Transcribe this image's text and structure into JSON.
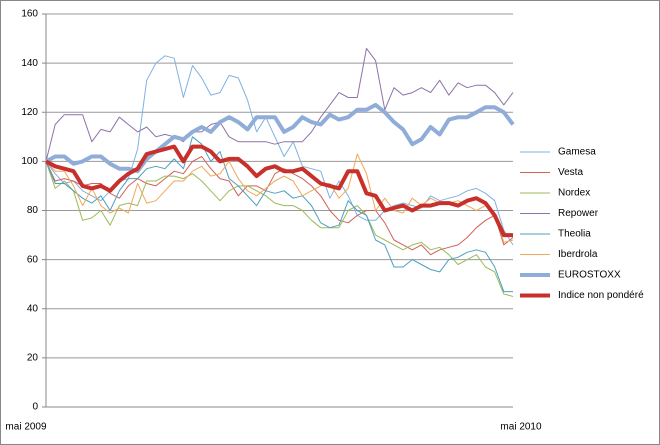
{
  "chart_data": {
    "type": "line",
    "categories": [
      "mai 2009",
      null,
      null,
      null,
      null,
      null,
      null,
      null,
      null,
      null,
      null,
      null,
      null,
      null,
      null,
      null,
      null,
      null,
      null,
      null,
      null,
      null,
      null,
      null,
      null,
      null,
      null,
      null,
      null,
      null,
      null,
      null,
      null,
      null,
      null,
      null,
      null,
      null,
      null,
      null,
      null,
      null,
      null,
      null,
      null,
      null,
      null,
      null,
      null,
      null,
      null,
      "mai 2010"
    ],
    "ylim": [
      0,
      160
    ],
    "yticks": [
      0,
      20,
      40,
      60,
      80,
      100,
      120,
      140,
      160
    ],
    "grid": true,
    "legend": "right",
    "series": [
      {
        "name": "Gamesa",
        "color": "#7fb2e0",
        "width": 1,
        "values": [
          100,
          95,
          91,
          92,
          88,
          86,
          84,
          88,
          92,
          93,
          105,
          133,
          140,
          143,
          142,
          126,
          139,
          134,
          127,
          128,
          135,
          134,
          125,
          112,
          118,
          110,
          102,
          108,
          98,
          97,
          96,
          85,
          92,
          86,
          78,
          76,
          76,
          80,
          82,
          83,
          82,
          81,
          86,
          84,
          85,
          86,
          88,
          89,
          87,
          84,
          72,
          66
        ]
      },
      {
        "name": "Vesta",
        "color": "#d0605a",
        "width": 1,
        "values": [
          100,
          92,
          93,
          92,
          90,
          91,
          91,
          87,
          85,
          90,
          93,
          91,
          90,
          93,
          96,
          95,
          100,
          102,
          97,
          93,
          92,
          86,
          90,
          90,
          88,
          95,
          97,
          95,
          93,
          90,
          86,
          80,
          76,
          75,
          78,
          80,
          80,
          75,
          68,
          66,
          64,
          66,
          62,
          64,
          65,
          66,
          69,
          73,
          76,
          78,
          66,
          69
        ]
      },
      {
        "name": "Nordex",
        "color": "#9bbb59",
        "width": 1,
        "values": [
          100,
          89,
          92,
          88,
          76,
          77,
          80,
          74,
          82,
          83,
          82,
          92,
          92,
          94,
          94,
          93,
          95,
          92,
          88,
          84,
          88,
          90,
          90,
          88,
          86,
          83,
          82,
          82,
          80,
          76,
          73,
          73,
          73,
          80,
          82,
          78,
          70,
          68,
          66,
          64,
          66,
          67,
          64,
          65,
          62,
          58,
          60,
          62,
          57,
          55,
          46,
          45
        ]
      },
      {
        "name": "Repower",
        "color": "#8e72a8",
        "width": 1,
        "values": [
          100,
          115,
          119,
          119,
          119,
          108,
          113,
          112,
          118,
          115,
          112,
          114,
          110,
          111,
          110,
          108,
          112,
          112,
          115,
          116,
          110,
          108,
          108,
          108,
          108,
          107,
          108,
          108,
          108,
          112,
          118,
          123,
          128,
          126,
          126,
          146,
          141,
          121,
          130,
          127,
          128,
          130,
          128,
          133,
          127,
          132,
          130,
          131,
          131,
          128,
          123,
          128
        ]
      },
      {
        "name": "Theolia",
        "color": "#4aa0c0",
        "width": 1,
        "values": [
          100,
          91,
          91,
          88,
          85,
          83,
          86,
          80,
          88,
          93,
          93,
          97,
          98,
          97,
          101,
          97,
          110,
          107,
          100,
          104,
          93,
          90,
          86,
          82,
          88,
          87,
          88,
          85,
          86,
          82,
          75,
          73,
          74,
          84,
          80,
          78,
          68,
          66,
          57,
          57,
          60,
          58,
          56,
          55,
          60,
          61,
          63,
          64,
          63,
          57,
          47,
          47
        ]
      },
      {
        "name": "Iberdrola",
        "color": "#f2a65a",
        "width": 1,
        "values": [
          100,
          96,
          96,
          90,
          82,
          89,
          82,
          79,
          81,
          79,
          91,
          83,
          84,
          88,
          92,
          92,
          96,
          98,
          94,
          95,
          100,
          93,
          88,
          86,
          89,
          92,
          94,
          92,
          86,
          88,
          90,
          91,
          85,
          89,
          103,
          95,
          80,
          85,
          80,
          79,
          85,
          82,
          85,
          83,
          83,
          84,
          82,
          80,
          82,
          79,
          67,
          68
        ]
      },
      {
        "name": "EUROSTOXX",
        "color": "#8fadd8",
        "width": 4,
        "values": [
          100,
          102,
          102,
          99,
          100,
          102,
          102,
          99,
          97,
          97,
          96,
          101,
          104,
          107,
          110,
          109,
          112,
          114,
          112,
          116,
          118,
          116,
          113,
          118,
          118,
          118,
          112,
          114,
          118,
          116,
          115,
          119,
          117,
          118,
          121,
          121,
          123,
          120,
          116,
          113,
          107,
          109,
          114,
          111,
          117,
          118,
          118,
          120,
          122,
          122,
          120,
          115
        ]
      },
      {
        "name": "Indice non pondéré",
        "color": "#c8302c",
        "width": 4,
        "values": [
          100,
          98,
          97,
          96,
          90,
          89,
          90,
          88,
          92,
          95,
          97,
          103,
          104,
          105,
          106,
          100,
          106,
          106,
          104,
          100,
          101,
          101,
          98,
          94,
          97,
          98,
          96,
          96,
          97,
          94,
          91,
          90,
          89,
          96,
          96,
          87,
          86,
          80,
          81,
          82,
          80,
          82,
          82,
          83,
          83,
          82,
          84,
          85,
          83,
          78,
          70,
          70
        ]
      }
    ]
  }
}
